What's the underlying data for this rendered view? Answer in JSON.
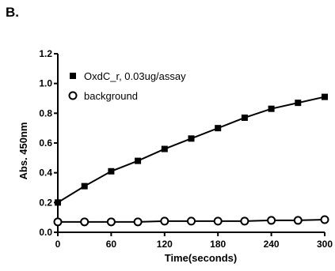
{
  "panel_label": "B.",
  "chart_data": {
    "type": "line",
    "title": "",
    "xlabel": "Time(seconds)",
    "ylabel": "Abs. 450nm",
    "xlim": [
      0,
      300
    ],
    "ylim": [
      0,
      1.2
    ],
    "x_ticks": [
      0,
      60,
      120,
      180,
      240,
      300
    ],
    "x_tick_labels": [
      "0",
      "60",
      "120",
      "180",
      "240",
      "300"
    ],
    "y_ticks": [
      0,
      0.2,
      0.4,
      0.6,
      0.8,
      1.0,
      1.2
    ],
    "y_tick_labels": [
      "0.0",
      "0.2",
      "0.4",
      "0.6",
      "0.8",
      "1.0",
      "1.2"
    ],
    "grid": false,
    "legend_position": "top-left",
    "x": [
      0,
      30,
      60,
      90,
      120,
      150,
      180,
      210,
      240,
      270,
      300
    ],
    "series": [
      {
        "name": "OxdC_r, 0.03ug/assay",
        "marker": "filled-square",
        "color": "#000000",
        "values": [
          0.2,
          0.31,
          0.41,
          0.48,
          0.56,
          0.63,
          0.7,
          0.77,
          0.83,
          0.87,
          0.91
        ]
      },
      {
        "name": "background",
        "marker": "open-circle",
        "color": "#000000",
        "values": [
          0.07,
          0.07,
          0.07,
          0.07,
          0.075,
          0.075,
          0.075,
          0.075,
          0.08,
          0.08,
          0.085
        ]
      }
    ]
  }
}
